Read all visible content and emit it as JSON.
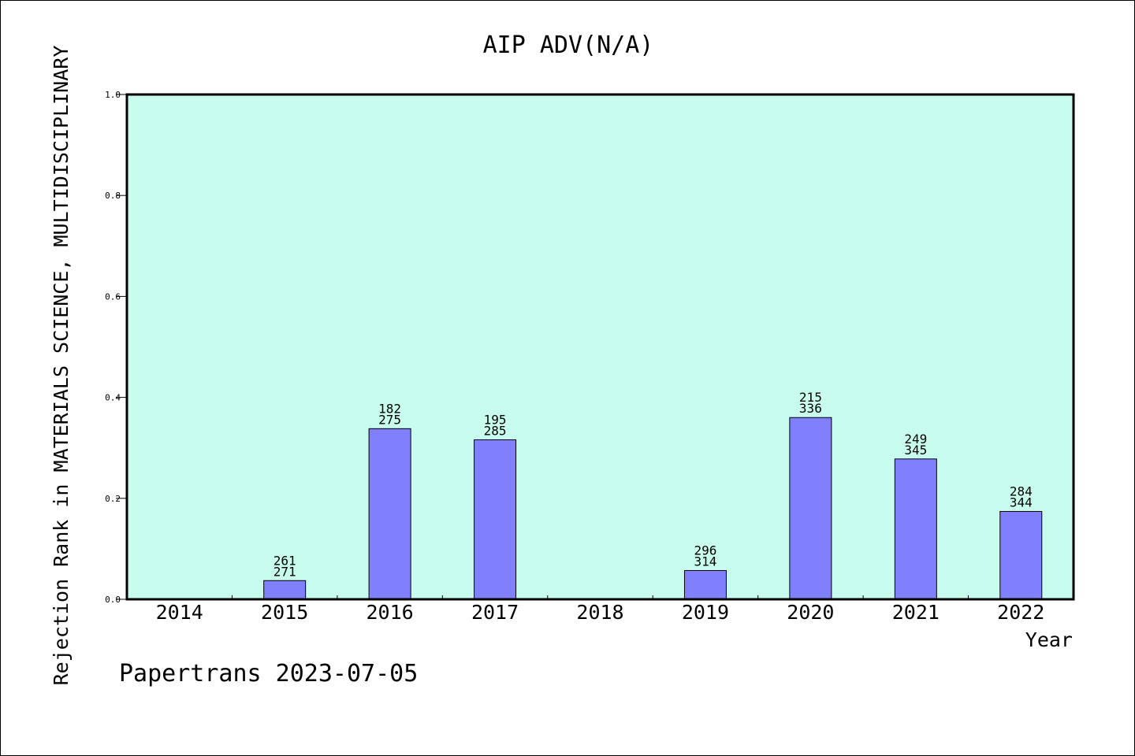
{
  "chart_data": {
    "type": "bar",
    "title": "AIP ADV(N/A)",
    "xlabel": "Year",
    "ylabel": "Rejection Rank in MATERIALS SCIENCE, MULTIDISCIPLINARY",
    "ylim": [
      0,
      1.0
    ],
    "yticks": [
      "0.0",
      "0.2",
      "0.4",
      "0.6",
      "0.8",
      "1.0"
    ],
    "categories": [
      "2014",
      "2015",
      "2016",
      "2017",
      "2018",
      "2019",
      "2020",
      "2021",
      "2022"
    ],
    "values": [
      0,
      0.037,
      0.338,
      0.316,
      0,
      0.057,
      0.36,
      0.278,
      0.174
    ],
    "labels_top": [
      "",
      "261",
      "182",
      "195",
      "",
      "296",
      "215",
      "249",
      "284"
    ],
    "labels_bottom": [
      "",
      "271",
      "275",
      "285",
      "",
      "314",
      "336",
      "345",
      "344"
    ],
    "grid": false,
    "colors": {
      "plot_background": "#c8fcee",
      "bar_fill": "#8080ff",
      "bar_stroke": "#000000",
      "axis": "#000000"
    }
  },
  "footer": "Papertrans 2023-07-05"
}
